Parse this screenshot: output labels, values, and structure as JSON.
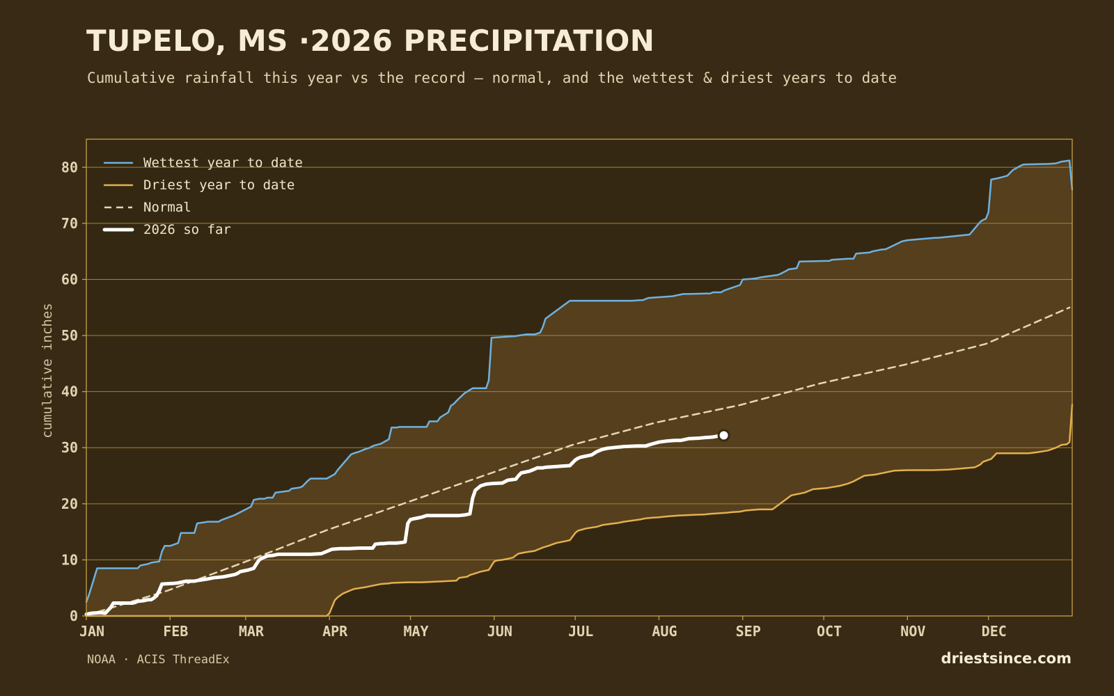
{
  "header": {
    "title": "TUPELO, MS ·2026 PRECIPITATION",
    "subtitle": "Cumulative rainfall this year vs the record — normal, and the wettest & driest years to date"
  },
  "footer": {
    "source": "NOAA · ACIS ThreadEx",
    "brand": "driestsince.com"
  },
  "colors": {
    "wettest": "#6fb2e0",
    "driest": "#e4b04e",
    "normal": "#e6d6b4",
    "current": "#ffffff",
    "band": "#553f1d",
    "grid": "#b8923c",
    "frame": "#c9a047"
  },
  "chart_data": {
    "type": "line",
    "title": "TUPELO, MS ·2026 PRECIPITATION",
    "ylabel": "cumulative inches",
    "xlabel": "",
    "ylim": [
      0,
      85
    ],
    "xlim_day_of_year": [
      1,
      366
    ],
    "yticks": [
      0,
      10,
      20,
      30,
      40,
      50,
      60,
      70,
      80
    ],
    "month_ticks": [
      {
        "label": "JAN",
        "day": 1
      },
      {
        "label": "FEB",
        "day": 32
      },
      {
        "label": "MAR",
        "day": 60
      },
      {
        "label": "APR",
        "day": 91
      },
      {
        "label": "MAY",
        "day": 121
      },
      {
        "label": "JUN",
        "day": 152
      },
      {
        "label": "JUL",
        "day": 182
      },
      {
        "label": "AUG",
        "day": 213
      },
      {
        "label": "SEP",
        "day": 244
      },
      {
        "label": "OCT",
        "day": 274
      },
      {
        "label": "NOV",
        "day": 305
      },
      {
        "label": "DEC",
        "day": 335
      }
    ],
    "grid": true,
    "legend_position": "top-left",
    "series": [
      {
        "name": "Wettest year to date",
        "key": "wettest",
        "style": "solid",
        "x": [
          1,
          2,
          5,
          6,
          10,
          11,
          13,
          14,
          20,
          21,
          24,
          25,
          28,
          29,
          30,
          31,
          32,
          35,
          36,
          37,
          41,
          42,
          46,
          47,
          50,
          51,
          56,
          58,
          60,
          62,
          63,
          65,
          67,
          68,
          70,
          71,
          76,
          77,
          80,
          81,
          83,
          84,
          87,
          88,
          89,
          90,
          93,
          94,
          99,
          100,
          102,
          104,
          106,
          107,
          110,
          113,
          114,
          116,
          117,
          127,
          128,
          131,
          132,
          135,
          136,
          137,
          139,
          141,
          143,
          144,
          147,
          149,
          150,
          151,
          160,
          161,
          164,
          167,
          169,
          170,
          171,
          180,
          192,
          203,
          206,
          207,
          209,
          218,
          219,
          222,
          224,
          232,
          233,
          236,
          237,
          243,
          244,
          247,
          249,
          251,
          257,
          258,
          260,
          261,
          264,
          265,
          275,
          276,
          277,
          283,
          285,
          286,
          291,
          292,
          295,
          297,
          303,
          305,
          315,
          316,
          320,
          324,
          328,
          332,
          333,
          334,
          335,
          336,
          339,
          342,
          343,
          344,
          347,
          348,
          357,
          360,
          362,
          365,
          366
        ],
        "y": [
          2.5,
          3.8,
          8.5,
          8.5,
          8.5,
          8.5,
          8.5,
          8.5,
          8.5,
          9.0,
          9.3,
          9.5,
          9.7,
          11.5,
          12.5,
          12.5,
          12.5,
          13.0,
          14.8,
          14.8,
          14.8,
          16.5,
          16.8,
          16.8,
          16.8,
          17.1,
          18.0,
          18.5,
          19.0,
          19.5,
          20.7,
          20.9,
          20.9,
          21.1,
          21.1,
          22.0,
          22.3,
          22.7,
          22.9,
          23.1,
          24.1,
          24.5,
          24.5,
          24.5,
          24.5,
          24.5,
          25.3,
          26.0,
          28.8,
          29.0,
          29.3,
          29.7,
          30.0,
          30.3,
          30.7,
          31.5,
          33.6,
          33.6,
          33.7,
          33.7,
          34.7,
          34.7,
          35.4,
          36.3,
          37.5,
          37.8,
          38.8,
          39.7,
          40.3,
          40.6,
          40.6,
          40.6,
          42.0,
          49.6,
          49.9,
          50.0,
          50.2,
          50.2,
          50.5,
          51.5,
          53.0,
          56.2,
          56.2,
          56.2,
          56.3,
          56.3,
          56.7,
          57.0,
          57.1,
          57.4,
          57.4,
          57.5,
          57.7,
          57.7,
          58.0,
          59.0,
          60.0,
          60.1,
          60.2,
          60.4,
          60.8,
          61.0,
          61.5,
          61.8,
          62.0,
          63.2,
          63.3,
          63.3,
          63.5,
          63.7,
          63.7,
          64.6,
          64.8,
          65.0,
          65.3,
          65.4,
          66.8,
          67.0,
          67.4,
          67.4,
          67.6,
          67.8,
          68.0,
          70.3,
          70.6,
          70.8,
          72.0,
          77.8,
          78.1,
          78.5,
          79.0,
          79.5,
          80.3,
          80.5,
          80.6,
          80.7,
          81.0,
          81.2,
          76.0
        ]
      },
      {
        "name": "Driest year to date",
        "key": "driest",
        "style": "solid",
        "x": [
          1,
          10,
          20,
          40,
          60,
          80,
          88,
          90,
          91,
          93,
          94,
          96,
          99,
          100,
          104,
          106,
          108,
          110,
          113,
          114,
          120,
          125,
          130,
          138,
          139,
          142,
          143,
          145,
          147,
          150,
          152,
          153,
          155,
          157,
          159,
          160,
          161,
          163,
          167,
          168,
          170,
          172,
          175,
          178,
          180,
          182,
          183,
          186,
          190,
          192,
          195,
          198,
          200,
          203,
          206,
          208,
          210,
          213,
          215,
          217,
          220,
          225,
          230,
          232,
          235,
          238,
          240,
          243,
          245,
          250,
          255,
          262,
          263,
          265,
          267,
          270,
          275,
          280,
          283,
          285,
          289,
          293,
          295,
          300,
          305,
          311,
          314,
          320,
          325,
          330,
          332,
          333,
          336,
          338,
          341,
          350,
          353,
          357,
          360,
          362,
          364,
          365,
          366
        ],
        "y": [
          0,
          0,
          0,
          0,
          0,
          0,
          0,
          0,
          0.5,
          2.8,
          3.3,
          4.0,
          4.6,
          4.8,
          5.1,
          5.3,
          5.5,
          5.7,
          5.8,
          5.9,
          6.0,
          6.0,
          6.1,
          6.3,
          6.8,
          7.0,
          7.3,
          7.6,
          7.9,
          8.2,
          9.7,
          9.9,
          10.0,
          10.2,
          10.4,
          10.8,
          11.1,
          11.3,
          11.6,
          11.8,
          12.2,
          12.5,
          13.0,
          13.3,
          13.5,
          14.8,
          15.2,
          15.6,
          15.9,
          16.2,
          16.4,
          16.6,
          16.8,
          17.0,
          17.2,
          17.4,
          17.5,
          17.6,
          17.7,
          17.8,
          17.9,
          18.0,
          18.1,
          18.2,
          18.3,
          18.4,
          18.5,
          18.6,
          18.8,
          19.0,
          19.0,
          21.5,
          21.6,
          21.8,
          22.0,
          22.6,
          22.8,
          23.2,
          23.6,
          24.0,
          25.0,
          25.2,
          25.4,
          25.9,
          26.0,
          26.0,
          26.0,
          26.1,
          26.3,
          26.5,
          27.0,
          27.5,
          28.0,
          29.0,
          29.0,
          29.0,
          29.2,
          29.5,
          30.0,
          30.5,
          30.6,
          31.0,
          37.7
        ]
      },
      {
        "name": "Normal",
        "key": "normal",
        "style": "dashed",
        "x": [
          1,
          31,
          59,
          90,
          120,
          151,
          181,
          212,
          243,
          273,
          304,
          334,
          365
        ],
        "y": [
          0.1,
          4.5,
          9.5,
          15.3,
          20.3,
          25.5,
          30.5,
          34.5,
          37.6,
          41.5,
          44.8,
          48.5,
          55.0
        ]
      },
      {
        "name": "2026 so far",
        "key": "current",
        "style": "bold",
        "x": [
          1,
          3,
          6,
          8,
          10,
          11,
          18,
          19,
          20,
          22,
          24,
          25,
          26,
          27,
          28,
          29,
          33,
          35,
          38,
          41,
          42,
          46,
          48,
          52,
          56,
          57,
          58,
          59,
          60,
          61,
          63,
          64,
          65,
          66,
          67,
          68,
          70,
          72,
          75,
          78,
          84,
          88,
          92,
          95,
          97,
          98,
          102,
          107,
          108,
          110,
          111,
          113,
          114,
          116,
          118,
          119,
          120,
          121,
          122,
          124,
          125,
          127,
          130,
          135,
          139,
          141,
          143,
          144,
          145,
          147,
          149,
          151,
          155,
          157,
          160,
          161,
          162,
          165,
          167,
          168,
          170,
          171,
          174,
          177,
          180,
          182,
          183,
          184,
          186,
          188,
          190,
          192,
          194,
          196,
          198,
          200,
          205,
          208,
          210,
          213,
          216,
          219,
          221,
          224,
          228,
          230,
          233,
          235,
          237
        ],
        "y": [
          0.3,
          0.5,
          0.6,
          0.5,
          1.5,
          2.3,
          2.3,
          2.4,
          2.6,
          2.7,
          2.9,
          2.9,
          3.2,
          3.6,
          4.5,
          5.7,
          5.8,
          5.9,
          6.2,
          6.2,
          6.3,
          6.6,
          6.8,
          7.0,
          7.4,
          7.6,
          7.9,
          8.0,
          8.1,
          8.2,
          8.5,
          9.3,
          10.0,
          10.3,
          10.5,
          10.7,
          10.8,
          11.0,
          11.0,
          11.0,
          11.0,
          11.1,
          11.9,
          12.0,
          12.0,
          12.0,
          12.1,
          12.1,
          12.8,
          12.9,
          12.9,
          13.0,
          13.0,
          13.0,
          13.1,
          13.2,
          16.5,
          17.2,
          17.3,
          17.5,
          17.6,
          17.9,
          17.9,
          17.9,
          17.9,
          18.0,
          18.2,
          21.0,
          22.4,
          23.2,
          23.5,
          23.6,
          23.7,
          24.2,
          24.4,
          25.0,
          25.5,
          25.8,
          26.2,
          26.4,
          26.4,
          26.5,
          26.6,
          26.7,
          26.8,
          27.8,
          28.1,
          28.3,
          28.5,
          28.7,
          29.3,
          29.7,
          29.9,
          30.0,
          30.1,
          30.2,
          30.3,
          30.3,
          30.6,
          31.0,
          31.2,
          31.3,
          31.3,
          31.6,
          31.7,
          31.8,
          31.9,
          32.1,
          32.2
        ]
      }
    ]
  }
}
